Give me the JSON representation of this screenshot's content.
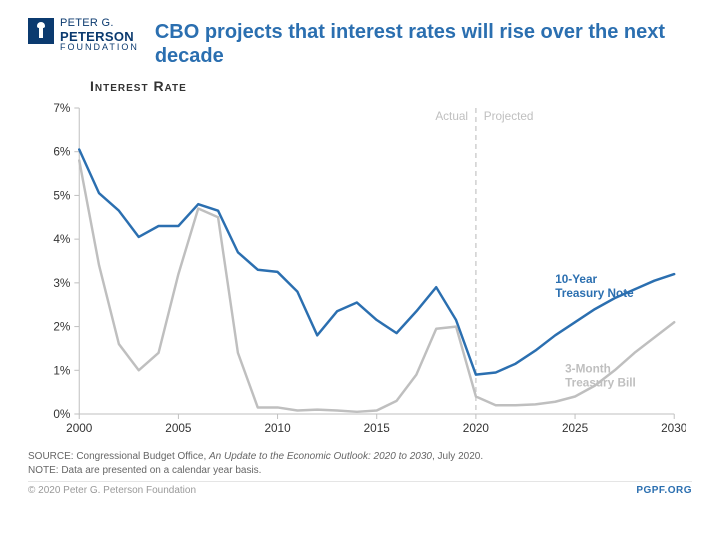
{
  "brand": {
    "line1": "PETER G.",
    "line2": "PETERSON",
    "line3": "FOUNDATION"
  },
  "title": "CBO projects that interest rates will rise over the next decade",
  "subtitle": "Interest Rate",
  "chart": {
    "type": "line",
    "background_color": "#ffffff",
    "axis_color": "#bfbfbf",
    "tick_color": "#bfbfbf",
    "text_color": "#333333",
    "xlim": [
      2000,
      2030
    ],
    "ylim": [
      0,
      7
    ],
    "xtick_step": 5,
    "ytick_step": 1,
    "y_suffix": "%",
    "divider_x": 2020,
    "divider_color": "#cfcfcf",
    "divider_labels": {
      "left": "Actual",
      "right": "Projected"
    },
    "line_width": 2.5,
    "series": [
      {
        "name": "10-Year Treasury Note",
        "label": "10-Year\nTreasury Note",
        "color": "#2b6fb0",
        "label_x": 2024,
        "label_y": 3.0,
        "x": [
          2000,
          2001,
          2002,
          2003,
          2004,
          2005,
          2006,
          2007,
          2008,
          2009,
          2010,
          2011,
          2012,
          2013,
          2014,
          2015,
          2016,
          2017,
          2018,
          2019,
          2020,
          2021,
          2022,
          2023,
          2024,
          2025,
          2026,
          2027,
          2028,
          2029,
          2030
        ],
        "y": [
          6.05,
          5.05,
          4.65,
          4.05,
          4.3,
          4.3,
          4.8,
          4.65,
          3.7,
          3.3,
          3.25,
          2.8,
          1.8,
          2.35,
          2.55,
          2.15,
          1.85,
          2.35,
          2.9,
          2.15,
          0.9,
          0.95,
          1.15,
          1.45,
          1.8,
          2.1,
          2.4,
          2.65,
          2.85,
          3.05,
          3.2
        ]
      },
      {
        "name": "3-Month Treasury Bill",
        "label": "3-Month\nTreasury Bill",
        "color": "#bfbfbf",
        "label_x": 2024.5,
        "label_y": 0.95,
        "x": [
          2000,
          2001,
          2002,
          2003,
          2004,
          2005,
          2006,
          2007,
          2008,
          2009,
          2010,
          2011,
          2012,
          2013,
          2014,
          2015,
          2016,
          2017,
          2018,
          2019,
          2020,
          2021,
          2022,
          2023,
          2024,
          2025,
          2026,
          2027,
          2028,
          2029,
          2030
        ],
        "y": [
          5.8,
          3.4,
          1.6,
          1.0,
          1.4,
          3.2,
          4.7,
          4.5,
          1.4,
          0.15,
          0.15,
          0.08,
          0.1,
          0.08,
          0.05,
          0.08,
          0.3,
          0.9,
          1.95,
          2.0,
          0.4,
          0.2,
          0.2,
          0.22,
          0.28,
          0.4,
          0.65,
          1.0,
          1.4,
          1.75,
          2.1
        ]
      }
    ]
  },
  "footnotes": {
    "source_prefix": "SOURCE: Congressional Budget Office, ",
    "source_italic": "An Update to the Economic Outlook: 2020 to 2030",
    "source_suffix": ", July 2020.",
    "note": "NOTE: Data are presented on a calendar year basis."
  },
  "copyright": "© 2020 Peter G. Peterson Foundation",
  "url": "PGPF.ORG"
}
